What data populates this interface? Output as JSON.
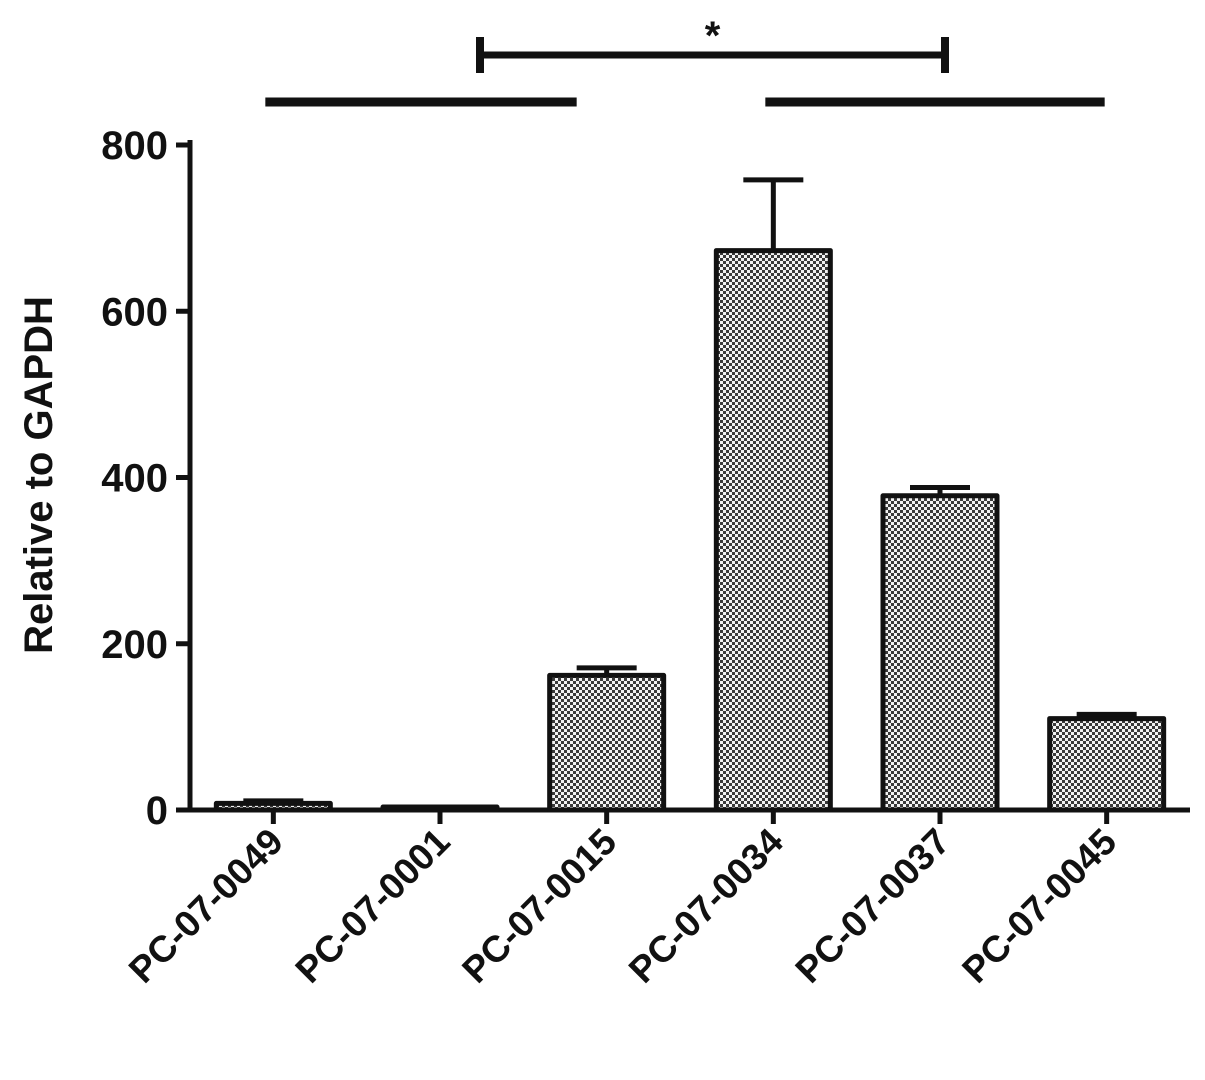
{
  "chart_data": {
    "type": "bar",
    "title": "",
    "xlabel": "",
    "ylabel": "Relative to GAPDH",
    "categories": [
      "PC-07-0049",
      "PC-07-0001",
      "PC-07-0015",
      "PC-07-0034",
      "PC-07-0037",
      "PC-07-0045"
    ],
    "values": [
      8,
      1,
      162,
      673,
      378,
      110
    ],
    "errors": [
      3,
      1,
      9,
      85,
      10,
      5
    ],
    "ylim": [
      0,
      800
    ],
    "yticks": [
      0,
      200,
      400,
      600,
      800
    ],
    "yticklabels": [
      "0",
      "200",
      "400",
      "600",
      "800"
    ],
    "bar_fill": "checkered gray",
    "grid": false,
    "legend": "none",
    "significance": {
      "label": "*",
      "group_a": [
        "PC-07-0049",
        "PC-07-0001",
        "PC-07-0015"
      ],
      "group_b": [
        "PC-07-0034",
        "PC-07-0037",
        "PC-07-0045"
      ]
    }
  },
  "colors": {
    "ink": "#111111",
    "bar_dark": "#3a3a3a",
    "bar_light": "#f2f2f2"
  }
}
